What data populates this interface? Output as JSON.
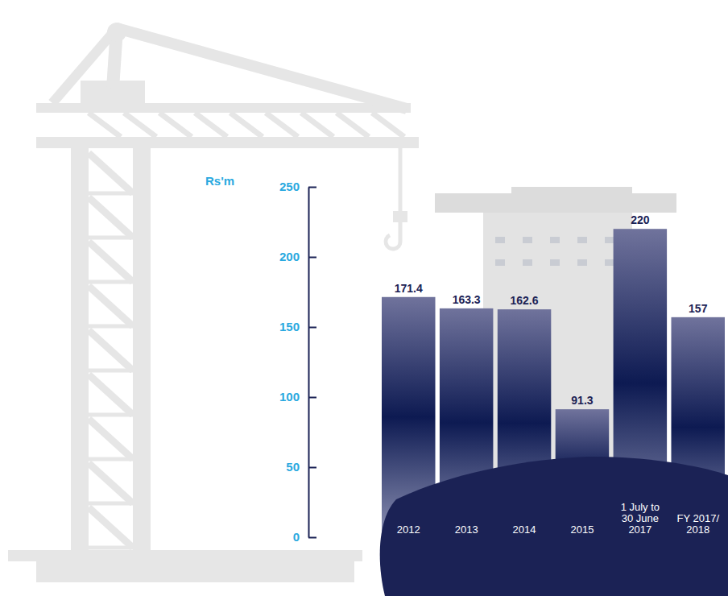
{
  "chart_data": {
    "type": "bar",
    "y_label": "Rs'm",
    "categories": [
      "2012",
      "2013",
      "2014",
      "2015",
      "1 July to 30 June 2017",
      "FY 2017/2018"
    ],
    "values": [
      171.4,
      163.3,
      162.6,
      91.3,
      220,
      157
    ],
    "color": "#0d1a52",
    "ylim": [
      0,
      250
    ],
    "yticks": [
      0,
      50,
      100,
      150,
      200,
      250
    ],
    "grid": false,
    "data_labels": true
  }
}
